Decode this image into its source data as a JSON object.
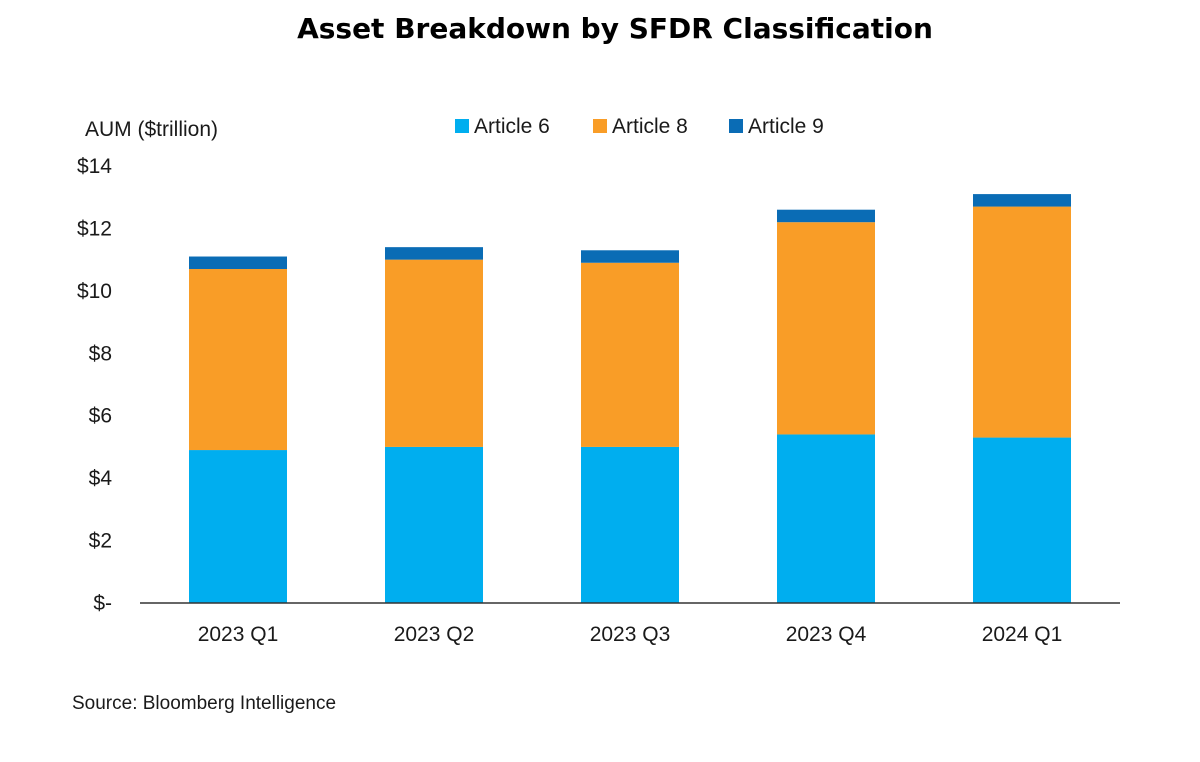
{
  "chart_data": {
    "type": "bar",
    "stacked": true,
    "title": "Asset Breakdown by SFDR  Classification",
    "ylabel": "AUM ($trillion)",
    "xlabel": "",
    "categories": [
      "2023 Q1",
      "2023 Q2",
      "2023 Q3",
      "2023 Q4",
      "2024 Q1"
    ],
    "series": [
      {
        "name": "Article 6",
        "color": "#00AEEF",
        "values": [
          4.9,
          5.0,
          5.0,
          5.4,
          5.3
        ]
      },
      {
        "name": "Article 8",
        "color": "#F99D27",
        "values": [
          5.8,
          6.0,
          5.9,
          6.8,
          7.4
        ]
      },
      {
        "name": "Article 9",
        "color": "#0A6CB5",
        "values": [
          0.4,
          0.4,
          0.4,
          0.4,
          0.4
        ]
      }
    ],
    "ylim": [
      0,
      14
    ],
    "yticks": [
      0,
      2,
      4,
      6,
      8,
      10,
      12,
      14
    ],
    "ytick_labels": [
      "$-",
      "$2",
      "$4",
      "$6",
      "$8",
      "$10",
      "$12",
      "$14"
    ],
    "grid": false,
    "legend_position": "top-center",
    "source": "Source: Bloomberg Intelligence"
  }
}
